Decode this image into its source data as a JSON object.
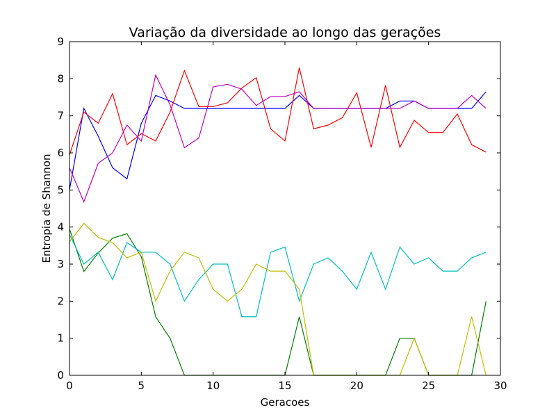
{
  "chart_data": {
    "type": "line",
    "title": "Variação da diversidade ao longo das gerações",
    "xlabel": "Geracoes",
    "ylabel": "Entropia de Shannon",
    "xlim": [
      0,
      30
    ],
    "ylim": [
      0,
      9
    ],
    "xticks": [
      0,
      5,
      10,
      15,
      20,
      25,
      30
    ],
    "yticks": [
      0,
      1,
      2,
      3,
      4,
      5,
      6,
      7,
      8,
      9
    ],
    "grid": false,
    "x": [
      0,
      1,
      2,
      3,
      4,
      5,
      6,
      7,
      8,
      9,
      10,
      11,
      12,
      13,
      14,
      15,
      16,
      17,
      18,
      19,
      20,
      21,
      22,
      23,
      24,
      25,
      26,
      27,
      28,
      29
    ],
    "series": [
      {
        "color": "#0000ff",
        "values": [
          5.0,
          7.2,
          6.45,
          5.6,
          5.3,
          6.8,
          7.55,
          7.4,
          7.2,
          7.2,
          7.2,
          7.2,
          7.2,
          7.2,
          7.2,
          7.2,
          7.55,
          7.2,
          7.2,
          7.2,
          7.2,
          7.2,
          7.2,
          7.4,
          7.4,
          7.2,
          7.2,
          7.2,
          7.2,
          7.65
        ]
      },
      {
        "color": "#008000",
        "values": [
          3.95,
          2.8,
          3.3,
          3.7,
          3.82,
          3.2,
          1.58,
          1.0,
          0.0,
          0.0,
          0.0,
          0.0,
          0.0,
          0.0,
          0.0,
          0.0,
          1.58,
          0.0,
          0.0,
          0.0,
          0.0,
          0.0,
          0.0,
          1.0,
          1.0,
          0.0,
          0.0,
          0.0,
          0.0,
          2.0
        ]
      },
      {
        "color": "#ff0000",
        "values": [
          5.95,
          7.1,
          6.8,
          7.6,
          6.22,
          6.52,
          6.32,
          7.1,
          8.22,
          7.25,
          7.25,
          7.35,
          7.75,
          8.03,
          6.65,
          6.32,
          8.3,
          6.65,
          6.75,
          6.95,
          7.62,
          6.15,
          7.82,
          6.15,
          6.88,
          6.55,
          6.55,
          7.05,
          6.22,
          6.02
        ]
      },
      {
        "color": "#00bfbf",
        "values": [
          3.8,
          3.0,
          3.32,
          2.58,
          3.58,
          3.32,
          3.32,
          3.0,
          2.0,
          2.58,
          3.0,
          3.0,
          1.58,
          1.58,
          3.32,
          3.46,
          2.0,
          3.0,
          3.17,
          2.81,
          2.32,
          3.32,
          2.32,
          3.46,
          3.0,
          3.17,
          2.81,
          2.81,
          3.17,
          3.32
        ]
      },
      {
        "color": "#bf00bf",
        "values": [
          5.6,
          4.68,
          5.72,
          6.0,
          6.75,
          6.32,
          8.1,
          7.3,
          6.14,
          6.4,
          7.78,
          7.85,
          7.72,
          7.28,
          7.52,
          7.52,
          7.65,
          7.2,
          7.2,
          7.2,
          7.2,
          7.2,
          7.2,
          7.2,
          7.4,
          7.2,
          7.2,
          7.2,
          7.55,
          7.2
        ]
      },
      {
        "color": "#bfbf00",
        "values": [
          3.6,
          4.1,
          3.72,
          3.58,
          3.17,
          3.32,
          2.0,
          2.81,
          3.32,
          3.17,
          2.32,
          2.0,
          2.32,
          3.0,
          2.81,
          2.81,
          2.32,
          0.0,
          0.0,
          0.0,
          0.0,
          0.0,
          0.0,
          0.0,
          1.0,
          0.0,
          0.0,
          0.0,
          1.58,
          0.0
        ]
      }
    ]
  }
}
